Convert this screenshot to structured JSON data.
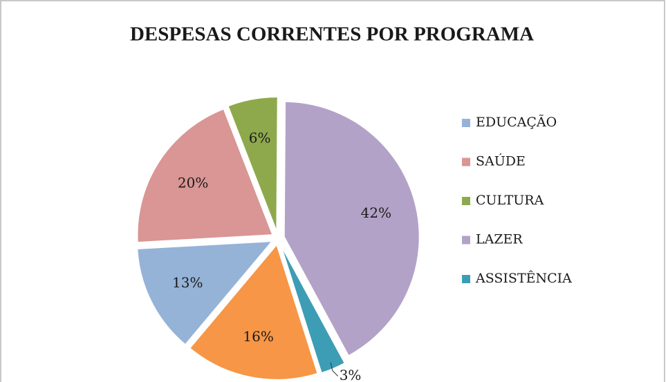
{
  "chart_data": {
    "type": "pie",
    "title": "DESPESAS CORRENTES POR PROGRAMA",
    "categories": [
      "EDUCAÇÃO",
      "SAÚDE",
      "CULTURA",
      "LAZER",
      "ASSISTÊNCIA",
      null
    ],
    "values": [
      13,
      20,
      6,
      42,
      3,
      16
    ],
    "value_labels": [
      "13%",
      "20%",
      "6%",
      "42%",
      "3%",
      "16%"
    ],
    "colors": [
      "#95b3d7",
      "#d99694",
      "#8ea94c",
      "#b3a2c7",
      "#3d9db5",
      "#f79646"
    ],
    "first_slice_angle": 220,
    "exploded": true,
    "legend": "right"
  }
}
